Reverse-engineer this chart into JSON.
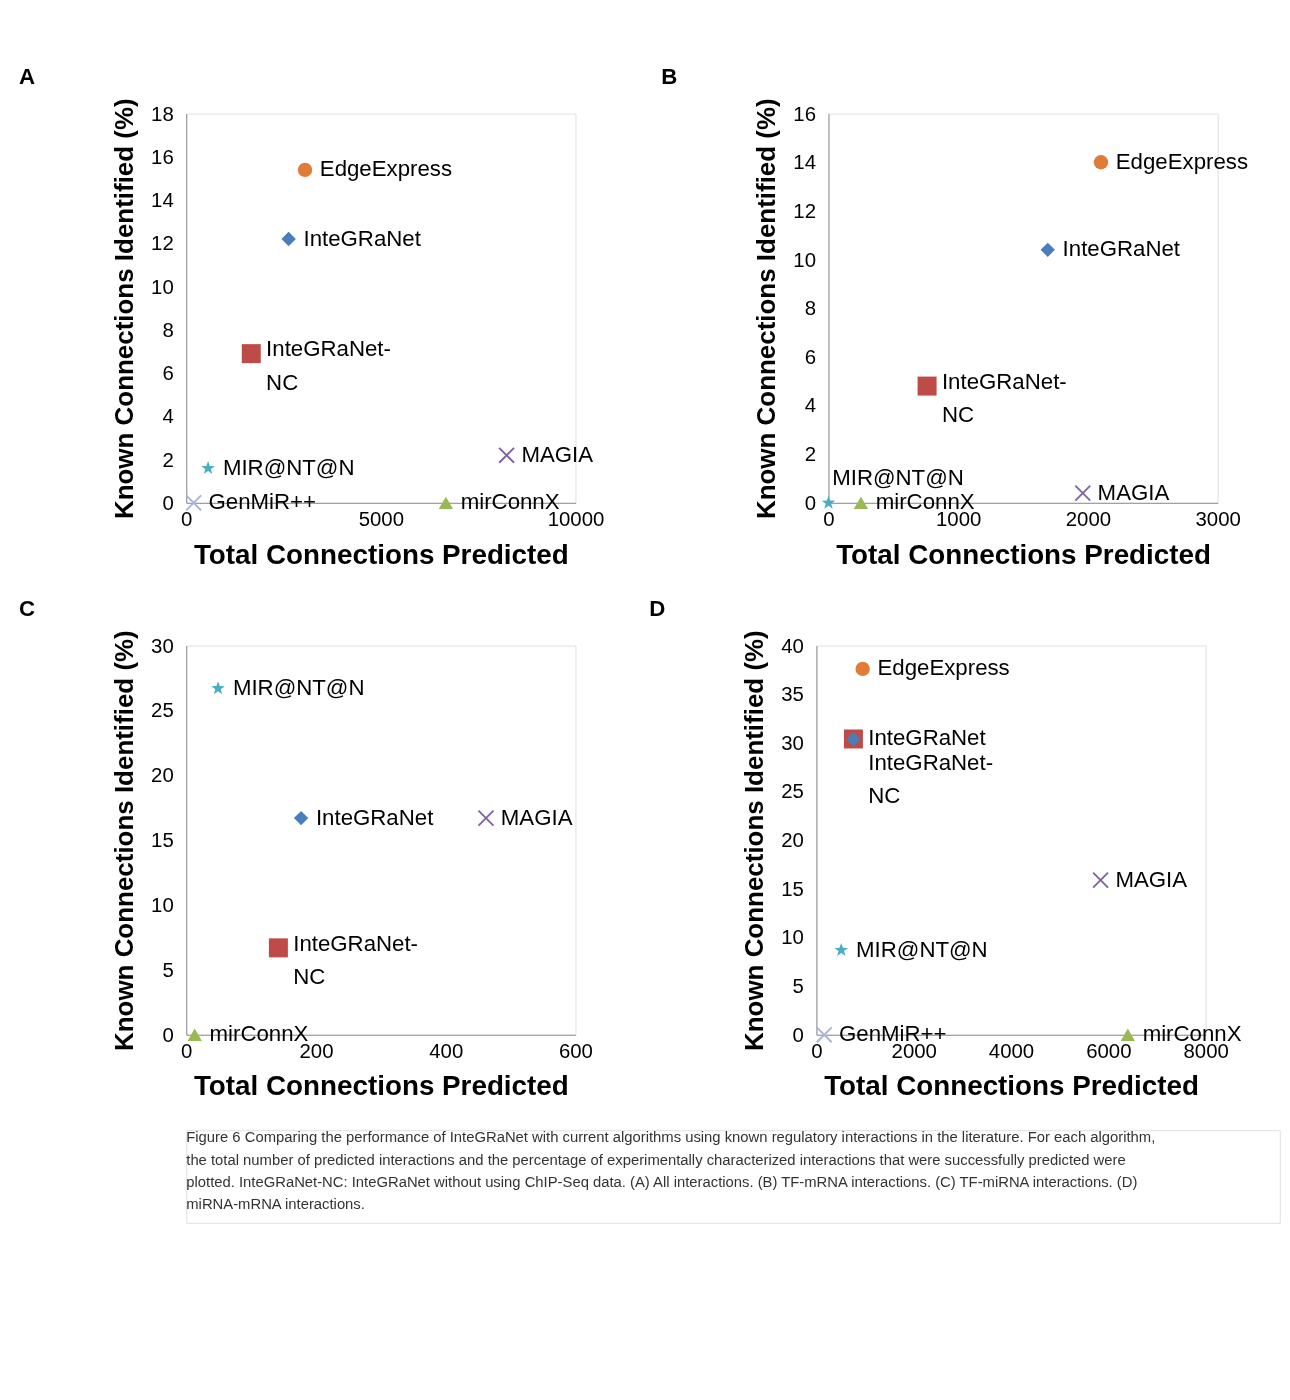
{
  "chart_data": [
    {
      "type": "scatter",
      "title": "A",
      "xlabel": "Total Connections Predicted",
      "ylabel": "Known Connections Identified (%)",
      "xlim": [
        0,
        10000
      ],
      "xticks": [
        0,
        5000,
        10000
      ],
      "ylim": [
        0,
        18
      ],
      "yticks": [
        0,
        2,
        4,
        6,
        8,
        10,
        12,
        14,
        16,
        18
      ],
      "grid": false,
      "legend": false,
      "annotations": [
        "Figure 6 Comparing the performance of InteGRaNet with current algorithms using known regulatory interactions in the literature. For each algorithm, the total number of predicted interactions and the percentage of experimentally characterized interactions that were successfully predicted were plotted. InteGRaNet-NC: InteGRaNet without using ChIP-Seq data. (A) All interactions. (B) TF-mRNA interactions. (C) TF-miRNA interactions. (D) miRNA-mRNA interactions."
      ],
      "series": [
        {
          "name": "EdgeExpress",
          "color": "#e07b39",
          "marker": "circle",
          "x": [
            3050
          ],
          "values": [
            15.4
          ]
        },
        {
          "name": "InteGRaNet",
          "color": "#4a7ebb",
          "marker": "diamond",
          "x": [
            2630
          ],
          "values": [
            12.2
          ]
        },
        {
          "name": "InteGRaNet-NC",
          "color": "#be4b48",
          "marker": "square",
          "x": [
            1670
          ],
          "values": [
            6.9
          ]
        },
        {
          "name": "MIR@NT@N",
          "color": "#4bacc6",
          "marker": "star",
          "x": [
            560
          ],
          "values": [
            1.6
          ]
        },
        {
          "name": "MAGIA",
          "color": "#7f63a0",
          "marker": "cross",
          "x": [
            8230
          ],
          "values": [
            2.2
          ]
        },
        {
          "name": "GenMiR++",
          "color": "#a5b3d9",
          "marker": "cross",
          "x": [
            190
          ],
          "values": [
            0
          ]
        },
        {
          "name": "mirConnX",
          "color": "#98b954",
          "marker": "triangle",
          "x": [
            6670
          ],
          "values": [
            0
          ]
        }
      ]
    },
    {
      "type": "scatter",
      "title": "B",
      "xlabel": "Total Connections Predicted",
      "ylabel": "Known Connections Identified (%)",
      "xlim": [
        0,
        3000
      ],
      "xticks": [
        0,
        1000,
        2000,
        3000
      ],
      "ylim": [
        0,
        16
      ],
      "yticks": [
        0,
        2,
        4,
        6,
        8,
        10,
        12,
        14,
        16
      ],
      "grid": false,
      "legend": false,
      "series": [
        {
          "name": "EdgeExpress",
          "color": "#e07b39",
          "marker": "circle",
          "x": [
            2100
          ],
          "values": [
            14.0
          ]
        },
        {
          "name": "InteGRaNet",
          "color": "#4a7ebb",
          "marker": "diamond",
          "x": [
            1690
          ],
          "values": [
            10.4
          ]
        },
        {
          "name": "InteGRaNet-NC",
          "color": "#be4b48",
          "marker": "square",
          "x": [
            760
          ],
          "values": [
            4.8
          ]
        },
        {
          "name": "MIR@NT@N",
          "color": "#4bacc6",
          "marker": "star",
          "x": [
            0
          ],
          "values": [
            0
          ]
        },
        {
          "name": "mirConnX",
          "color": "#98b954",
          "marker": "triangle",
          "x": [
            250
          ],
          "values": [
            0
          ]
        },
        {
          "name": "MAGIA",
          "color": "#7f63a0",
          "marker": "cross",
          "x": [
            1960
          ],
          "values": [
            0.4
          ]
        }
      ]
    },
    {
      "type": "scatter",
      "title": "C",
      "xlabel": "Total Connections Predicted",
      "ylabel": "Known Connections Identified (%)",
      "xlim": [
        0,
        600
      ],
      "xticks": [
        0,
        200,
        400,
        600
      ],
      "ylim": [
        0,
        30
      ],
      "yticks": [
        0,
        5,
        10,
        15,
        20,
        25,
        30
      ],
      "grid": false,
      "legend": false,
      "series": [
        {
          "name": "MIR@NT@N",
          "color": "#4bacc6",
          "marker": "star",
          "x": [
            49
          ],
          "values": [
            26.7
          ]
        },
        {
          "name": "InteGRaNet",
          "color": "#4a7ebb",
          "marker": "diamond",
          "x": [
            177
          ],
          "values": [
            16.7
          ]
        },
        {
          "name": "MAGIA",
          "color": "#7f63a0",
          "marker": "cross",
          "x": [
            462
          ],
          "values": [
            16.7
          ]
        },
        {
          "name": "InteGRaNet-NC",
          "color": "#be4b48",
          "marker": "square",
          "x": [
            142
          ],
          "values": [
            6.7
          ]
        },
        {
          "name": "mirConnX",
          "color": "#98b954",
          "marker": "triangle",
          "x": [
            13
          ],
          "values": [
            0
          ]
        }
      ]
    },
    {
      "type": "scatter",
      "title": "D",
      "xlabel": "Total Connections Predicted",
      "ylabel": "Known Connections Identified (%)",
      "xlim": [
        0,
        8000
      ],
      "xticks": [
        0,
        2000,
        4000,
        6000,
        8000
      ],
      "ylim": [
        0,
        40
      ],
      "yticks": [
        0,
        5,
        10,
        15,
        20,
        25,
        30,
        35,
        40
      ],
      "grid": false,
      "legend": false,
      "series": [
        {
          "name": "EdgeExpress",
          "color": "#e07b39",
          "marker": "circle",
          "x": [
            950
          ],
          "values": [
            37.6
          ]
        },
        {
          "name": "InteGRaNet",
          "color": "#4a7ebb",
          "marker": "diamond",
          "x": [
            760
          ],
          "values": [
            30.4
          ]
        },
        {
          "name": "InteGRaNet-NC",
          "color": "#be4b48",
          "marker": "square",
          "x": [
            760
          ],
          "values": [
            30.4
          ]
        },
        {
          "name": "MAGIA",
          "color": "#7f63a0",
          "marker": "cross",
          "x": [
            5840
          ],
          "values": [
            15.9
          ]
        },
        {
          "name": "MIR@NT@N",
          "color": "#4bacc6",
          "marker": "star",
          "x": [
            510
          ],
          "values": [
            8.7
          ]
        },
        {
          "name": "GenMiR++",
          "color": "#a5b3d9",
          "marker": "cross",
          "x": [
            160
          ],
          "values": [
            0
          ]
        },
        {
          "name": "mirConnX",
          "color": "#98b954",
          "marker": "triangle",
          "x": [
            6400
          ],
          "values": [
            0
          ]
        }
      ]
    }
  ]
}
